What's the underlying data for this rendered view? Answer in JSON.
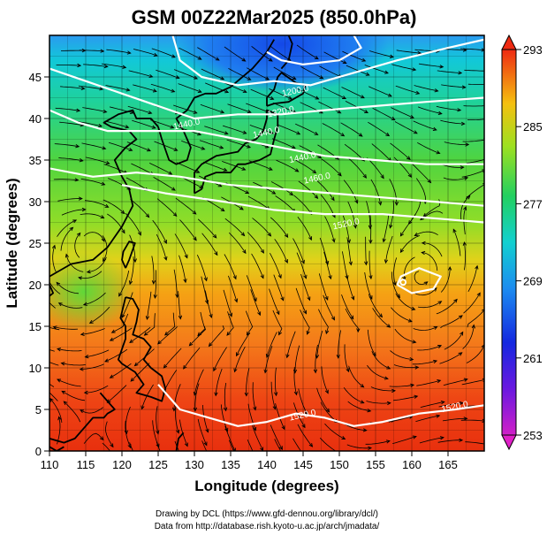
{
  "title": "GSM 00Z22Mar2025 (850.0hPa)",
  "credits": {
    "line1": "Drawing by DCL (https://www.gfd-dennou.org/library/dcl/)",
    "line2": "Data from http://database.rish.kyoto-u.ac.jp/arch/jmadata/"
  },
  "chart_data": {
    "type": "heatmap",
    "xlabel": "Longitude (degrees)",
    "ylabel": "Latitude  (degrees)",
    "xlim": [
      110,
      170
    ],
    "ylim": [
      0,
      50
    ],
    "xticks": [
      110,
      115,
      120,
      125,
      130,
      135,
      140,
      145,
      150,
      155,
      160,
      165
    ],
    "yticks": [
      0,
      5,
      10,
      15,
      20,
      25,
      30,
      35,
      40,
      45
    ],
    "grid": true,
    "colorbar": {
      "min": 253,
      "max": 293,
      "ticks": [
        253,
        261,
        269,
        277,
        285,
        293
      ]
    },
    "contour_labels": [
      {
        "text": "1200.0",
        "lon": 144,
        "lat": 43
      },
      {
        "text": "1320.0",
        "lon": 142,
        "lat": 40.5
      },
      {
        "text": "1440.0",
        "lon": 129,
        "lat": 39
      },
      {
        "text": "1440.0",
        "lon": 140,
        "lat": 38
      },
      {
        "text": "1440.0",
        "lon": 145,
        "lat": 35
      },
      {
        "text": "1460.0",
        "lon": 147,
        "lat": 32.5
      },
      {
        "text": "1520.0",
        "lon": 151,
        "lat": 27
      },
      {
        "text": "1520.0",
        "lon": 145,
        "lat": 4
      },
      {
        "text": "1520.0",
        "lon": 166,
        "lat": 5
      }
    ]
  }
}
